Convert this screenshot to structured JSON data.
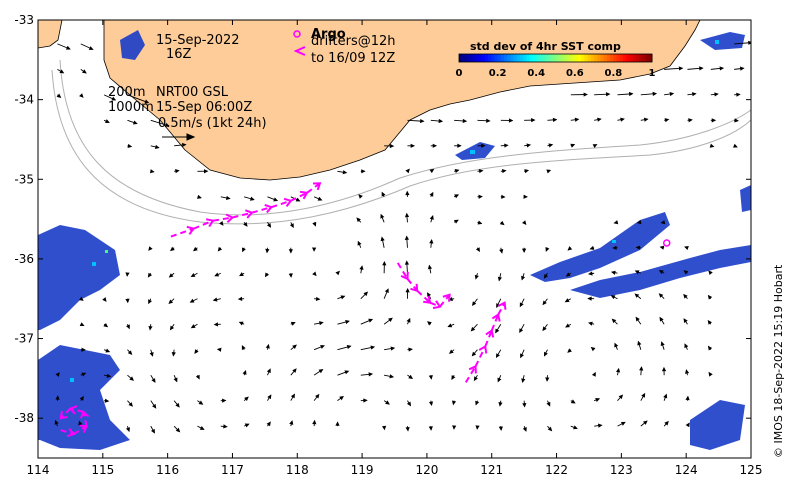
{
  "annotations": {
    "date": "15-Sep-2022",
    "hour": "16Z",
    "depth_line1": "200m",
    "depth_line2": "1000m",
    "product": "NRT00 GSL",
    "product_time": "15-Sep 06:00Z",
    "scale_label": "0.5m/s (1kt 24h)"
  },
  "argo_legend": {
    "label": "Argo",
    "drifters_line1": "drifters@12h",
    "drifters_line2": "to 16/09 12Z"
  },
  "colorbar": {
    "title": "std dev of 4hr SST comp",
    "ticks": [
      "0",
      "0.2",
      "0.4",
      "0.6",
      "0.8",
      "1"
    ],
    "colors": [
      "#00007f",
      "#0000ff",
      "#0080ff",
      "#00ffff",
      "#80ff80",
      "#ffff00",
      "#ff8000",
      "#ff0000",
      "#7f0000"
    ]
  },
  "axes": {
    "x_ticks": [
      "114",
      "115",
      "116",
      "117",
      "118",
      "119",
      "120",
      "121",
      "122",
      "123",
      "124",
      "125"
    ],
    "y_ticks": [
      "-33",
      "-34",
      "-35",
      "-36",
      "-37",
      "-38"
    ],
    "xlim": [
      114,
      125
    ],
    "ylim": [
      -38.5,
      -33
    ]
  },
  "credit": "© IMOS 18-Sep-2022 15:19 Hobart",
  "colors": {
    "land": "#fdcc99",
    "drifter": "#ff00ff",
    "sst_blue": "#1a3cc8"
  },
  "drifter_tracks": [
    [
      [
        116.05,
        -35.72
      ],
      [
        116.4,
        -35.62
      ],
      [
        116.7,
        -35.52
      ],
      [
        117.0,
        -35.48
      ],
      [
        117.3,
        -35.42
      ],
      [
        117.6,
        -35.35
      ],
      [
        117.9,
        -35.27
      ],
      [
        118.15,
        -35.17
      ],
      [
        118.35,
        -35.05
      ]
    ],
    [
      [
        119.55,
        -36.05
      ],
      [
        119.7,
        -36.25
      ],
      [
        119.85,
        -36.4
      ],
      [
        120.05,
        -36.55
      ],
      [
        120.2,
        -36.6
      ],
      [
        120.35,
        -36.45
      ]
    ],
    [
      [
        120.6,
        -37.55
      ],
      [
        120.75,
        -37.35
      ],
      [
        120.9,
        -37.1
      ],
      [
        121.0,
        -36.9
      ],
      [
        121.1,
        -36.7
      ],
      [
        121.2,
        -36.55
      ]
    ],
    [
      [
        114.35,
        -38.15
      ],
      [
        114.55,
        -38.2
      ],
      [
        114.75,
        -38.1
      ],
      [
        114.7,
        -37.92
      ],
      [
        114.5,
        -37.88
      ],
      [
        114.35,
        -38.0
      ]
    ]
  ],
  "argo_float": [
    123.7,
    -35.8
  ]
}
